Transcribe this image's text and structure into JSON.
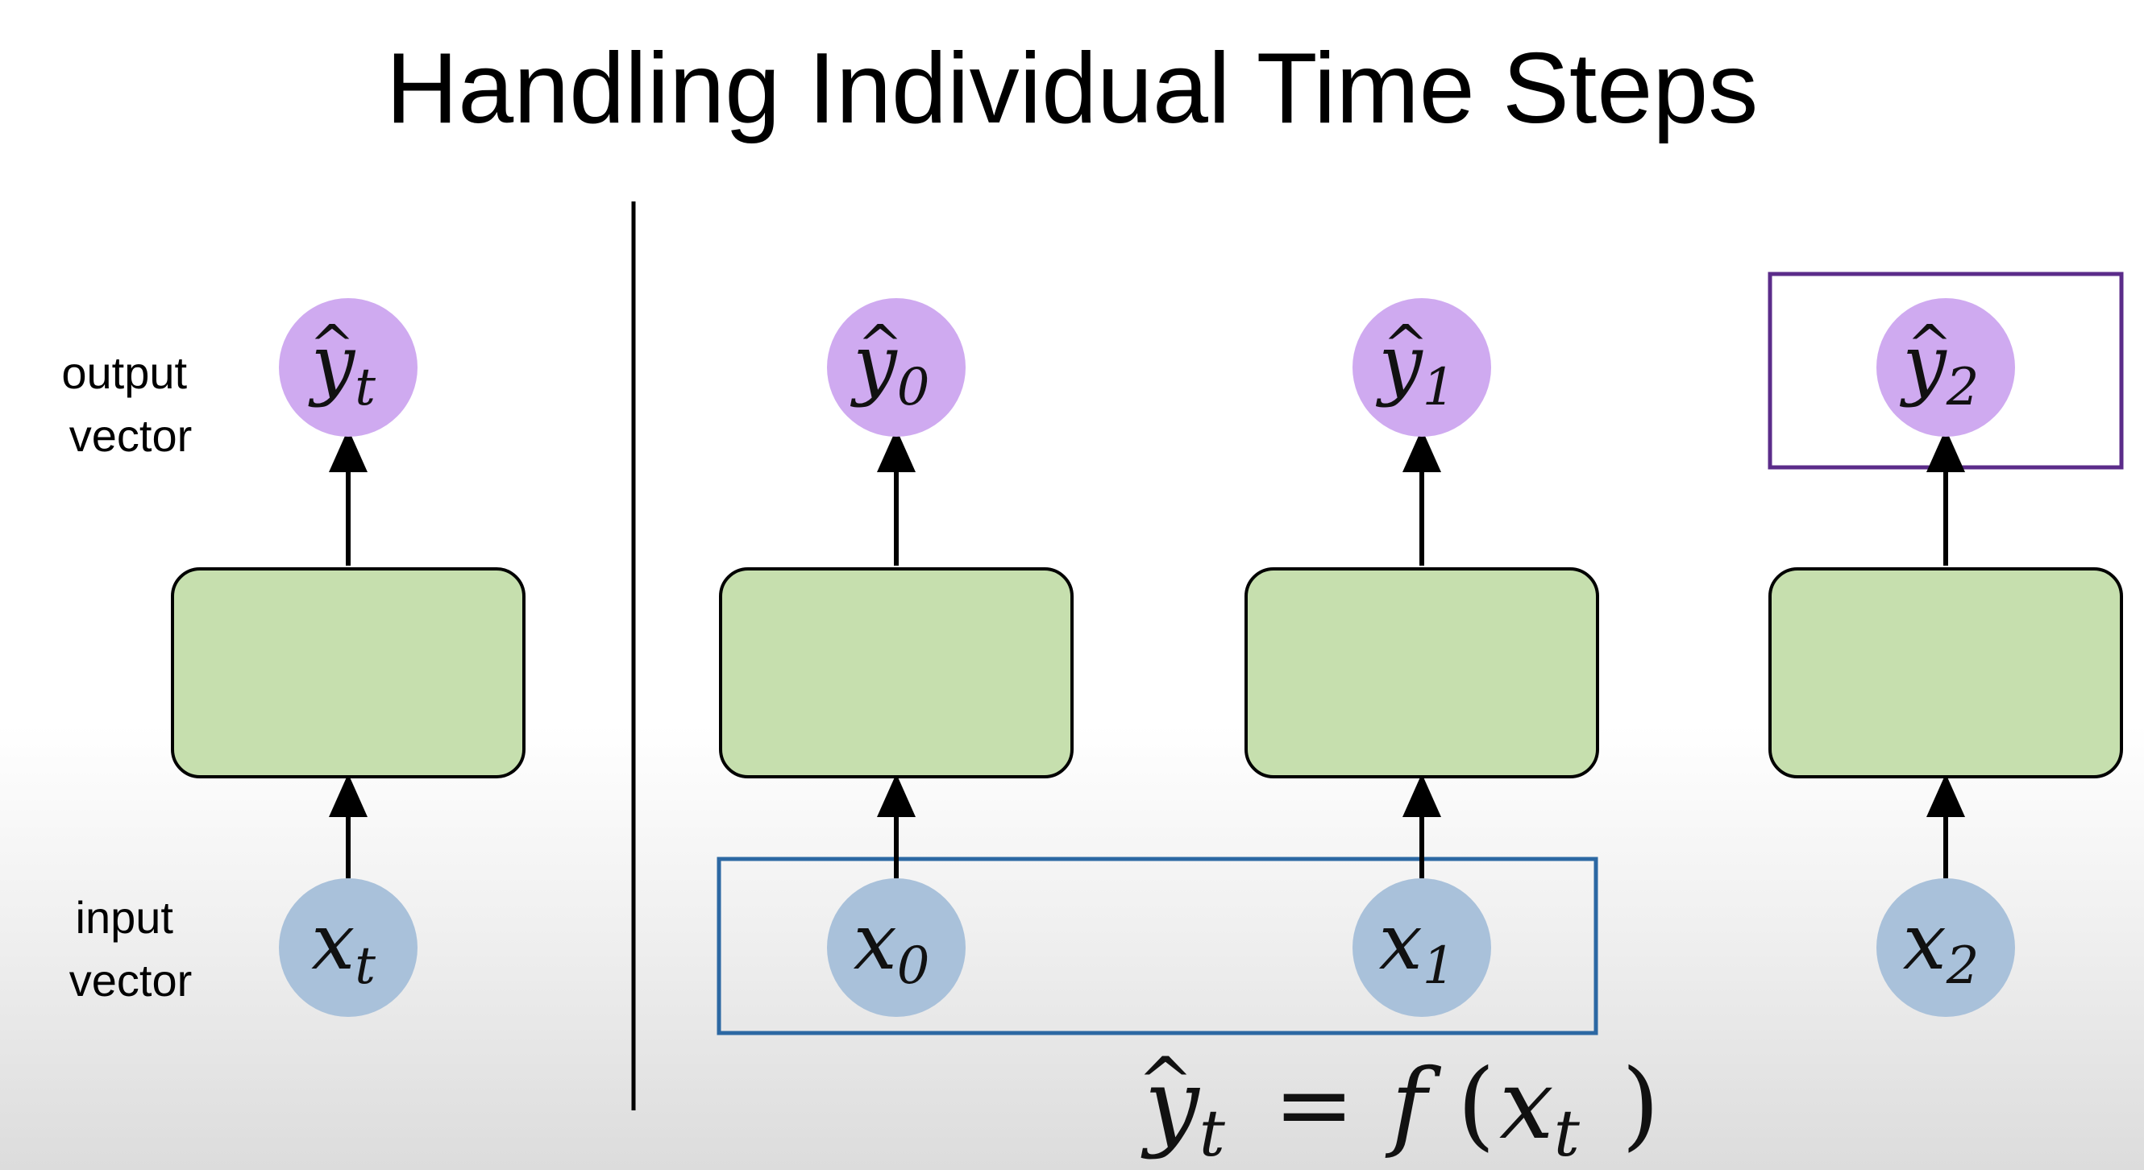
{
  "title": "Handling Individual Time Steps",
  "labels": {
    "output": [
      "output",
      "vector"
    ],
    "input": [
      "input",
      "vector"
    ]
  },
  "nodes": {
    "single": {
      "output_base": "y",
      "output_sub": "t",
      "input_base": "x",
      "input_sub": "t"
    },
    "steps": [
      {
        "output_base": "y",
        "output_sub": "0",
        "input_base": "x",
        "input_sub": "0"
      },
      {
        "output_base": "y",
        "output_sub": "1",
        "input_base": "x",
        "input_sub": "1"
      },
      {
        "output_base": "y",
        "output_sub": "2",
        "input_base": "x",
        "input_sub": "2"
      }
    ]
  },
  "equation": {
    "lhs_base": "y",
    "lhs_sub": "t",
    "equals": "=",
    "func": "f",
    "open_paren": "(",
    "arg_base": "x",
    "arg_sub": "t",
    "close_paren": ")"
  },
  "hat_glyph": "^",
  "colors": {
    "output_node": "#cfaaf0",
    "input_node": "#a9c1da",
    "cell_fill": "#c6dfae",
    "input_group_box": "#2c68a3",
    "output_highlight_box": "#5b2c8a"
  }
}
